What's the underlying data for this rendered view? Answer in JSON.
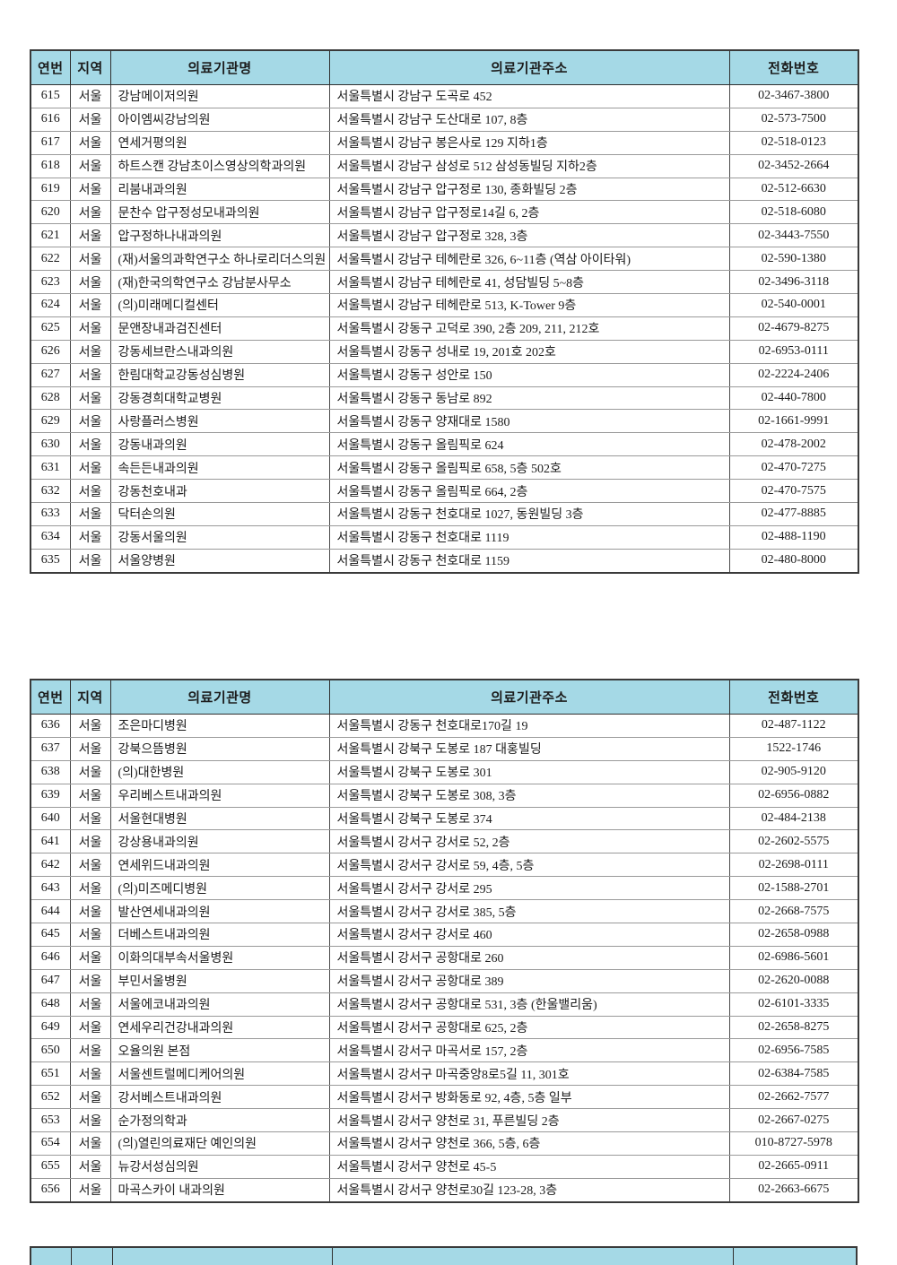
{
  "columns": [
    "연번",
    "지역",
    "의료기관명",
    "의료기관주소",
    "전화번호"
  ],
  "header_bg": "#a5d9e6",
  "tables": [
    {
      "rows": [
        [
          "615",
          "서울",
          "강남메이저의원",
          "서울특별시 강남구 도곡로 452",
          "02-3467-3800"
        ],
        [
          "616",
          "서울",
          "아이엠씨강남의원",
          "서울특별시 강남구 도산대로 107, 8층",
          "02-573-7500"
        ],
        [
          "617",
          "서울",
          "연세거평의원",
          "서울특별시 강남구 봉은사로 129 지하1층",
          "02-518-0123"
        ],
        [
          "618",
          "서울",
          "하트스캔 강남초이스영상의학과의원",
          "서울특별시 강남구 삼성로 512 삼성동빌딩 지하2층",
          "02-3452-2664"
        ],
        [
          "619",
          "서울",
          "리붐내과의원",
          "서울특별시 강남구 압구정로 130, 종화빌딩 2층",
          "02-512-6630"
        ],
        [
          "620",
          "서울",
          "문찬수 압구정성모내과의원",
          "서울특별시 강남구 압구정로14길 6, 2층",
          "02-518-6080"
        ],
        [
          "621",
          "서울",
          "압구정하나내과의원",
          "서울특별시 강남구 압구정로 328, 3층",
          "02-3443-7550"
        ],
        [
          "622",
          "서울",
          "(재)서울의과학연구소 하나로리더스의원",
          "서울특별시 강남구 테헤란로 326, 6~11층 (역삼 아이타워)",
          "02-590-1380"
        ],
        [
          "623",
          "서울",
          "(재)한국의학연구소 강남분사무소",
          "서울특별시 강남구 테헤란로 41, 성담빌딩 5~8층",
          "02-3496-3118"
        ],
        [
          "624",
          "서울",
          "(의)미래메디컬센터",
          "서울특별시 강남구 테헤란로 513, K-Tower 9층",
          "02-540-0001"
        ],
        [
          "625",
          "서울",
          "문앤장내과검진센터",
          "서울특별시 강동구 고덕로 390, 2층 209, 211, 212호",
          "02-4679-8275"
        ],
        [
          "626",
          "서울",
          "강동세브란스내과의원",
          "서울특별시 강동구 성내로 19, 201호 202호",
          "02-6953-0111"
        ],
        [
          "627",
          "서울",
          "한림대학교강동성심병원",
          "서울특별시 강동구 성안로 150",
          "02-2224-2406"
        ],
        [
          "628",
          "서울",
          "강동경희대학교병원",
          "서울특별시 강동구 동남로 892",
          "02-440-7800"
        ],
        [
          "629",
          "서울",
          "사랑플러스병원",
          "서울특별시 강동구 양재대로 1580",
          "02-1661-9991"
        ],
        [
          "630",
          "서울",
          "강동내과의원",
          "서울특별시 강동구 올림픽로 624",
          "02-478-2002"
        ],
        [
          "631",
          "서울",
          "속든든내과의원",
          "서울특별시 강동구 올림픽로 658, 5층 502호",
          "02-470-7275"
        ],
        [
          "632",
          "서울",
          "강동천호내과",
          "서울특별시 강동구 올림픽로 664, 2층",
          "02-470-7575"
        ],
        [
          "633",
          "서울",
          "닥터손의원",
          "서울특별시 강동구 천호대로 1027, 동원빌딩 3층",
          "02-477-8885"
        ],
        [
          "634",
          "서울",
          "강동서울의원",
          "서울특별시 강동구 천호대로 1119",
          "02-488-1190"
        ],
        [
          "635",
          "서울",
          "서울양병원",
          "서울특별시 강동구 천호대로 1159",
          "02-480-8000"
        ]
      ]
    },
    {
      "rows": [
        [
          "636",
          "서울",
          "조은마디병원",
          "서울특별시 강동구 천호대로170길 19",
          "02-487-1122"
        ],
        [
          "637",
          "서울",
          "강북으뜸병원",
          "서울특별시 강북구 도봉로 187 대홍빌딩",
          "1522-1746"
        ],
        [
          "638",
          "서울",
          "(의)대한병원",
          "서울특별시 강북구 도봉로 301",
          "02-905-9120"
        ],
        [
          "639",
          "서울",
          "우리베스트내과의원",
          "서울특별시 강북구 도봉로 308, 3층",
          "02-6956-0882"
        ],
        [
          "640",
          "서울",
          "서울현대병원",
          "서울특별시 강북구 도봉로 374",
          "02-484-2138"
        ],
        [
          "641",
          "서울",
          "강상용내과의원",
          "서울특별시 강서구 강서로 52, 2층",
          "02-2602-5575"
        ],
        [
          "642",
          "서울",
          "연세위드내과의원",
          "서울특별시 강서구 강서로 59, 4층, 5층",
          "02-2698-0111"
        ],
        [
          "643",
          "서울",
          "(의)미즈메디병원",
          "서울특별시 강서구 강서로 295",
          "02-1588-2701"
        ],
        [
          "644",
          "서울",
          "발산연세내과의원",
          "서울특별시 강서구 강서로 385, 5층",
          "02-2668-7575"
        ],
        [
          "645",
          "서울",
          "더베스트내과의원",
          "서울특별시 강서구 강서로 460",
          "02-2658-0988"
        ],
        [
          "646",
          "서울",
          "이화의대부속서울병원",
          "서울특별시 강서구 공항대로 260",
          "02-6986-5601"
        ],
        [
          "647",
          "서울",
          "부민서울병원",
          "서울특별시 강서구 공항대로 389",
          "02-2620-0088"
        ],
        [
          "648",
          "서울",
          "서울에코내과의원",
          "서울특별시 강서구 공항대로 531, 3층 (한울밸리움)",
          "02-6101-3335"
        ],
        [
          "649",
          "서울",
          "연세우리건강내과의원",
          "서울특별시 강서구 공항대로 625, 2층",
          "02-2658-8275"
        ],
        [
          "650",
          "서울",
          "오율의원 본점",
          "서울특별시 강서구 마곡서로 157, 2층",
          "02-6956-7585"
        ],
        [
          "651",
          "서울",
          "서울센트럴메디케어의원",
          "서울특별시 강서구 마곡중앙8로5길 11, 301호",
          "02-6384-7585"
        ],
        [
          "652",
          "서울",
          "강서베스트내과의원",
          "서울특별시 강서구 방화동로 92, 4층, 5층 일부",
          "02-2662-7577"
        ],
        [
          "653",
          "서울",
          "순가정의학과",
          "서울특별시 강서구 양천로 31, 푸른빌딩 2층",
          "02-2667-0275"
        ],
        [
          "654",
          "서울",
          "(의)열린의료재단 예인의원",
          "서울특별시 강서구 양천로 366, 5층, 6층",
          "010-8727-5978"
        ],
        [
          "655",
          "서울",
          "뉴강서성심의원",
          "서울특별시 강서구 양천로 45-5",
          "02-2665-0911"
        ],
        [
          "656",
          "서울",
          "마곡스카이 내과의원",
          "서울특별시 강서구 양천로30길 123-28, 3층",
          "02-2663-6675"
        ]
      ]
    }
  ]
}
